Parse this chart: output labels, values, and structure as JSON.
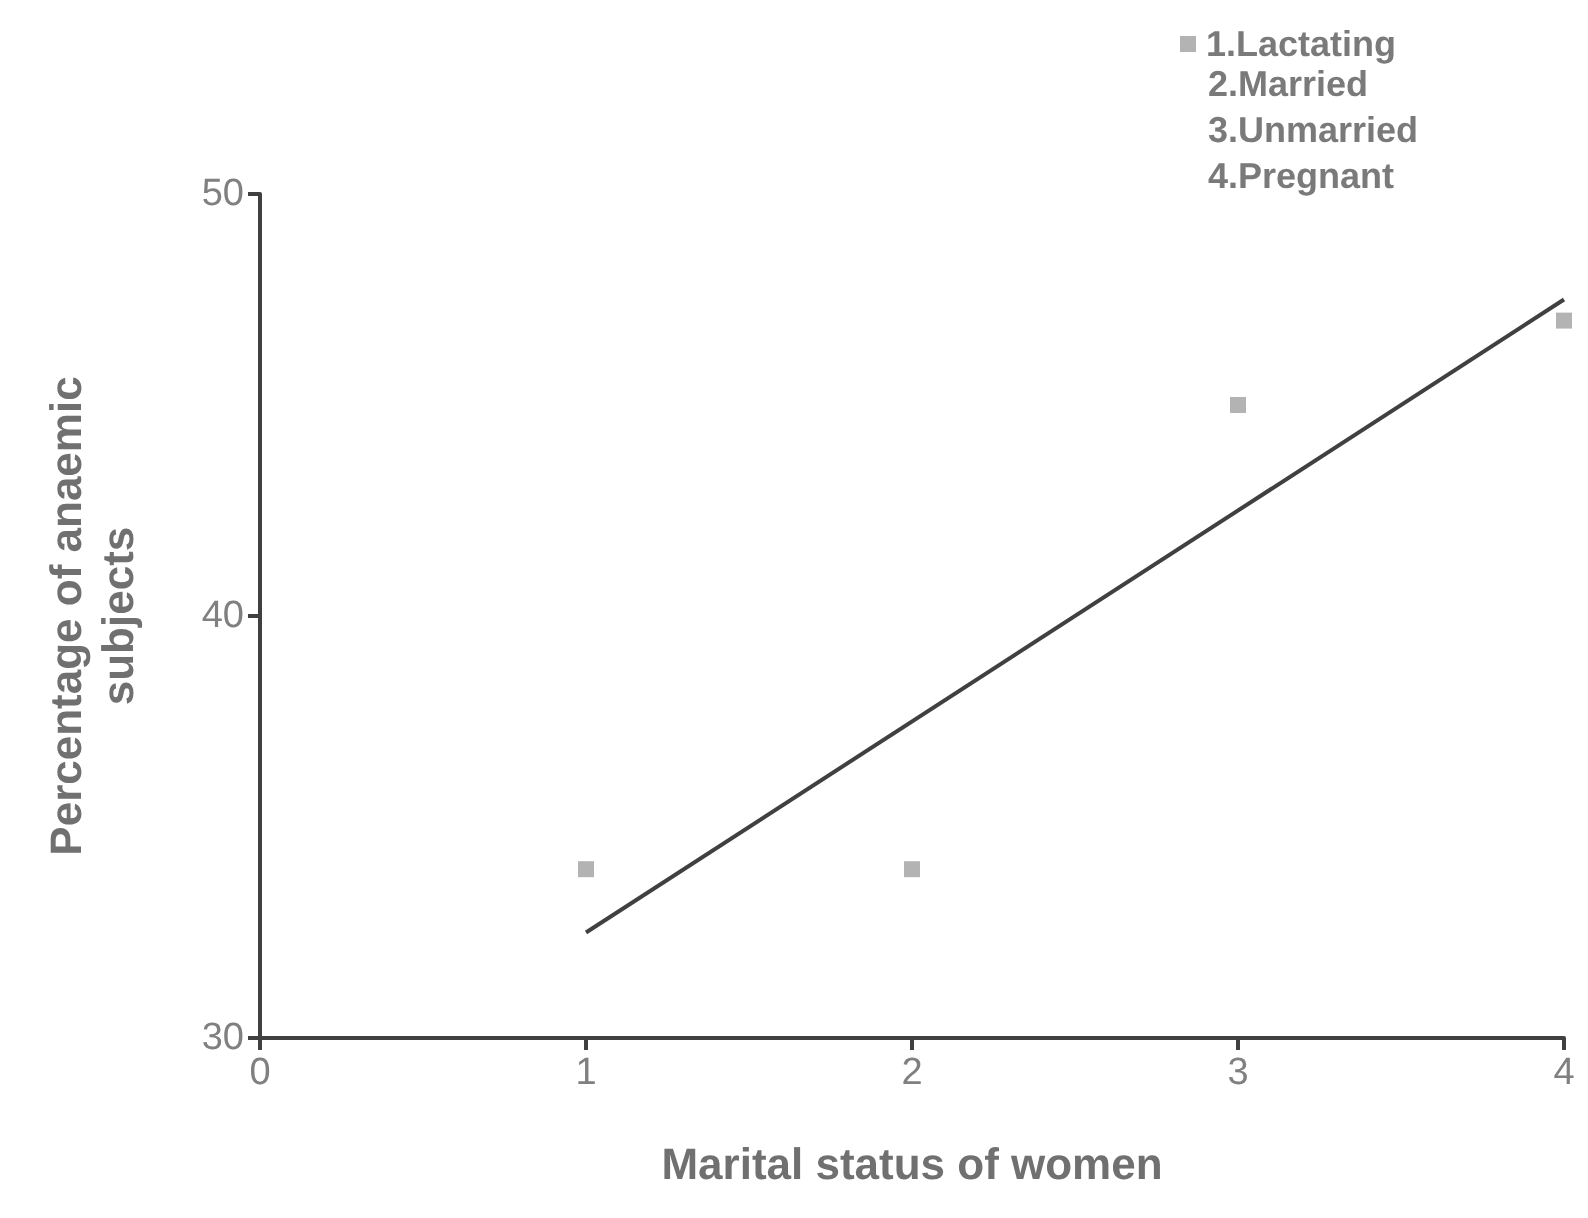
{
  "chart_data": {
    "type": "scatter",
    "xlabel": "Marital status of women",
    "ylabel": "Percentage of anaemic\nsubjects",
    "xlim": [
      0,
      4
    ],
    "xticks": [
      0,
      1,
      2,
      3,
      4
    ],
    "ylim": [
      30,
      50
    ],
    "yticks": [
      30,
      40,
      50
    ],
    "grid": false,
    "legend": "top right",
    "marker": "square",
    "series": [
      {
        "name": "1.Lactating",
        "color": "#a0a0a0",
        "x": [
          1,
          2,
          3,
          4
        ],
        "values": [
          34,
          34,
          45,
          47
        ]
      },
      {
        "type": "line",
        "color": "#404040",
        "x": [
          1,
          4
        ],
        "values": [
          32.5,
          47.5
        ],
        "marker": "none"
      }
    ],
    "annotations": [
      "2.Married",
      "3.Unmarried",
      "4.Pregnant"
    ]
  }
}
